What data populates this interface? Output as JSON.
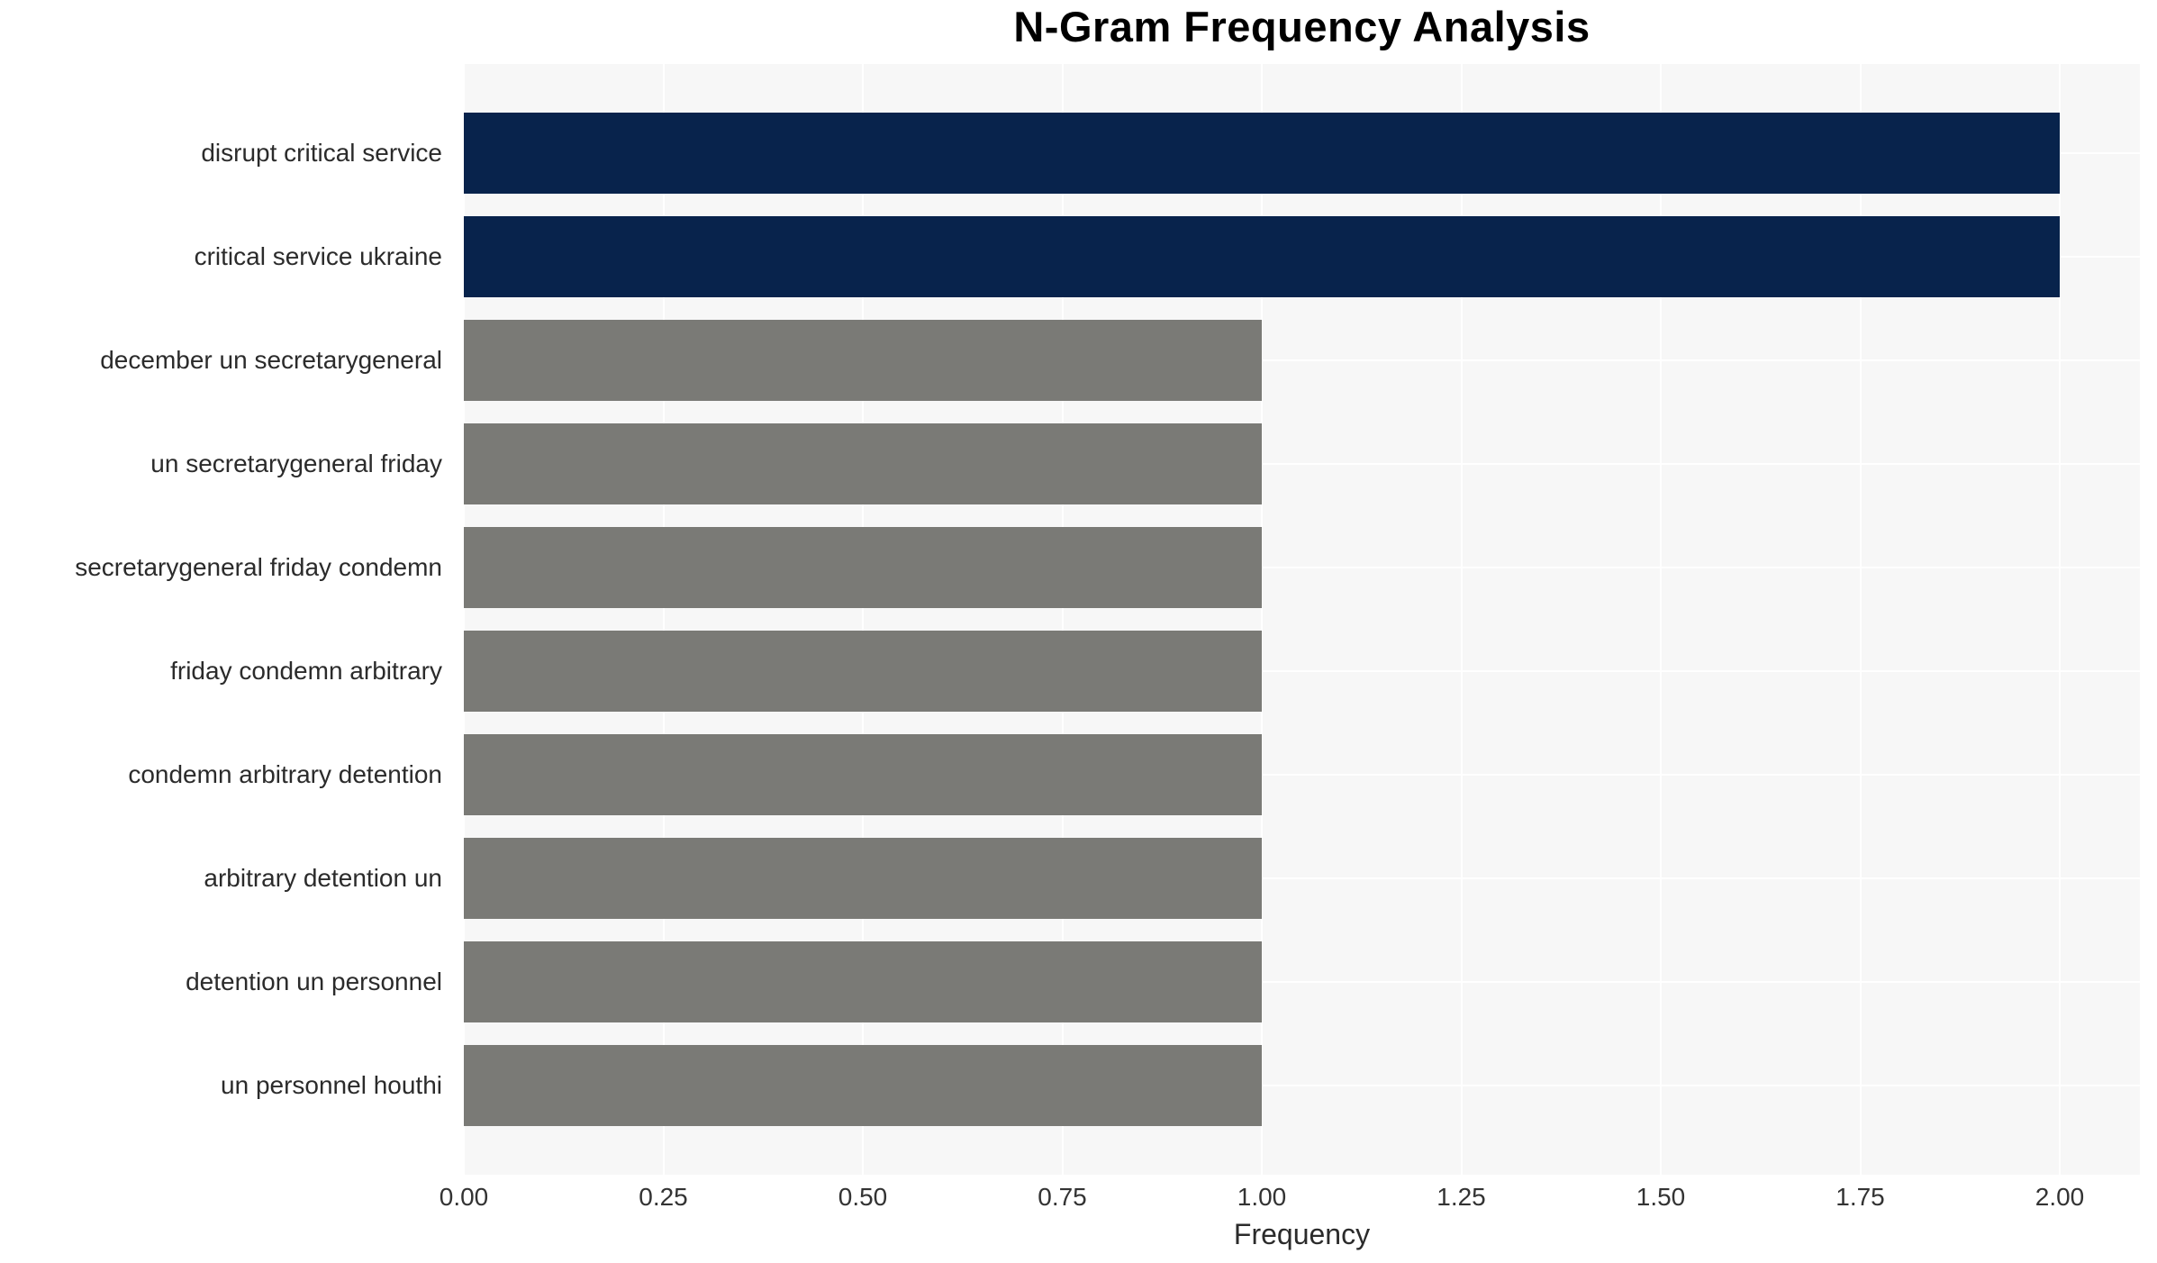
{
  "chart_data": {
    "type": "bar",
    "orientation": "horizontal",
    "title": "N-Gram Frequency Analysis",
    "xlabel": "Frequency",
    "ylabel": "",
    "categories": [
      "disrupt critical service",
      "critical service ukraine",
      "december un secretarygeneral",
      "un secretarygeneral friday",
      "secretarygeneral friday condemn",
      "friday condemn arbitrary",
      "condemn arbitrary detention",
      "arbitrary detention un",
      "detention un personnel",
      "un personnel houthi"
    ],
    "values": [
      2,
      2,
      1,
      1,
      1,
      1,
      1,
      1,
      1,
      1
    ],
    "bar_colors": [
      "#08234c",
      "#08234c",
      "#7a7a76",
      "#7a7a76",
      "#7a7a76",
      "#7a7a76",
      "#7a7a76",
      "#7a7a76",
      "#7a7a76",
      "#7a7a76"
    ],
    "xtick_labels": [
      "0.00",
      "0.25",
      "0.50",
      "0.75",
      "1.00",
      "1.25",
      "1.50",
      "1.75",
      "2.00"
    ],
    "xlim": [
      0,
      2.1
    ],
    "grid": true,
    "legend": "none",
    "colors": {
      "highlight": "#08234c",
      "default": "#7a7a76",
      "plot_background": "#f7f7f7",
      "gridline": "#ffffff",
      "label_text": "#2b2b2b",
      "tick_text": "#333333",
      "title_text": "#000000"
    }
  }
}
